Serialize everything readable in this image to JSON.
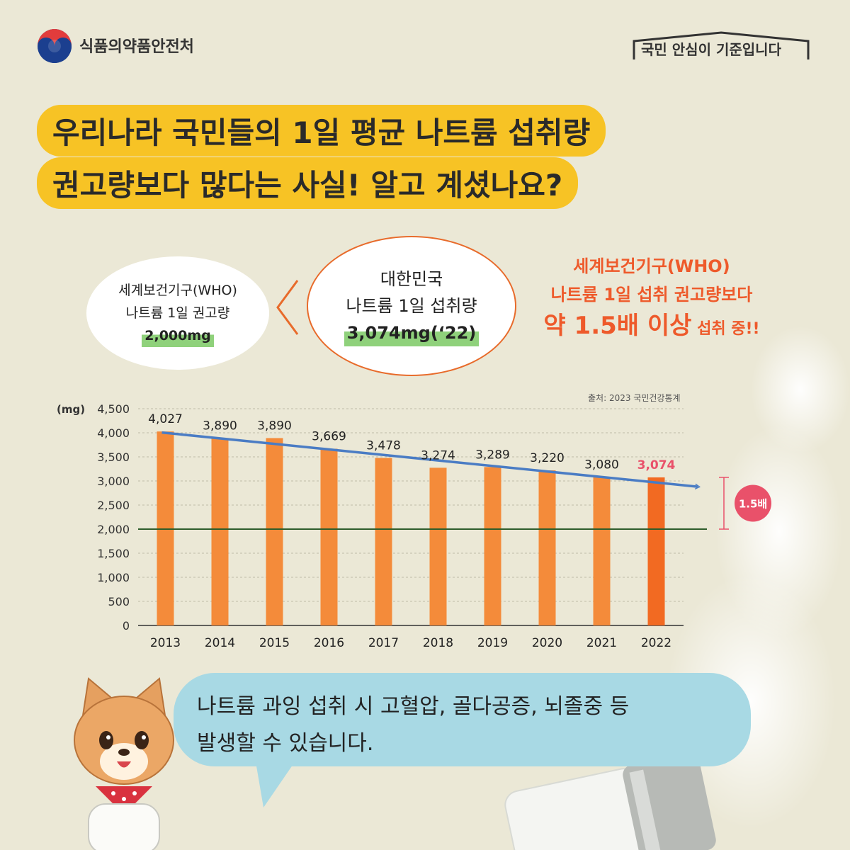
{
  "header": {
    "org_name": "식품의약품안전처",
    "slogan_part1": "국민 ",
    "slogan_bold1": "안심",
    "slogan_part2": "이 ",
    "slogan_bold2": "기준",
    "slogan_part3": "입니다"
  },
  "title": {
    "line1": "우리나라 국민들의 1일 평균 나트륨 섭취량",
    "line2": "권고량보다 많다는 사실! 알고 계셨나요?"
  },
  "who_box": {
    "line1": "세계보건기구(WHO)",
    "line2": "나트륨 1일 권고량",
    "value": "2,000mg"
  },
  "korea_box": {
    "line1": "대한민국",
    "line2": "나트륨 1일 섭취량",
    "value": "3,074mg(‘22)"
  },
  "statement": {
    "line1": "세계보건기구(WHO)",
    "line2": "나트륨 1일 섭취 권고량보다",
    "line3_big": "약 1.5배 이상",
    "line3_small": " 섭취 중!!"
  },
  "bubble": {
    "line1": "나트륨 과잉 섭취 시 고혈압, 골다공증, 뇌졸중 등",
    "line2": "발생할 수 있습니다."
  },
  "colors": {
    "bar": "#f48b3a",
    "bar_highlight": "#f26a22",
    "trend_arrow": "#4a7cc4",
    "reference_line": "#2e5d2b",
    "accent_red": "#ee5a2b",
    "badge": "#e9516a",
    "title_bg": "#f7c325",
    "bubble_bg": "#a8d9e4"
  },
  "chart_data": {
    "type": "bar",
    "source": "출처: 2023 국민건강통계",
    "ylabel": "(mg)",
    "ylim": [
      0,
      4500
    ],
    "yticks": [
      "0",
      "500",
      "1,000",
      "1,500",
      "2,000",
      "2,500",
      "3,000",
      "3,500",
      "4,000",
      "4,500"
    ],
    "categories": [
      "2013",
      "2014",
      "2015",
      "2016",
      "2017",
      "2018",
      "2019",
      "2020",
      "2021",
      "2022"
    ],
    "values": [
      4027,
      3890,
      3890,
      3669,
      3478,
      3274,
      3289,
      3220,
      3080,
      3074
    ],
    "value_labels": [
      "4,027",
      "3,890",
      "3,890",
      "3,669",
      "3,478",
      "3,274",
      "3,289",
      "3,220",
      "3,080",
      "3,074"
    ],
    "highlight_index": 9,
    "reference_line": 2000,
    "trend": "decreasing",
    "badge_label": "1.5배",
    "grid": true
  }
}
